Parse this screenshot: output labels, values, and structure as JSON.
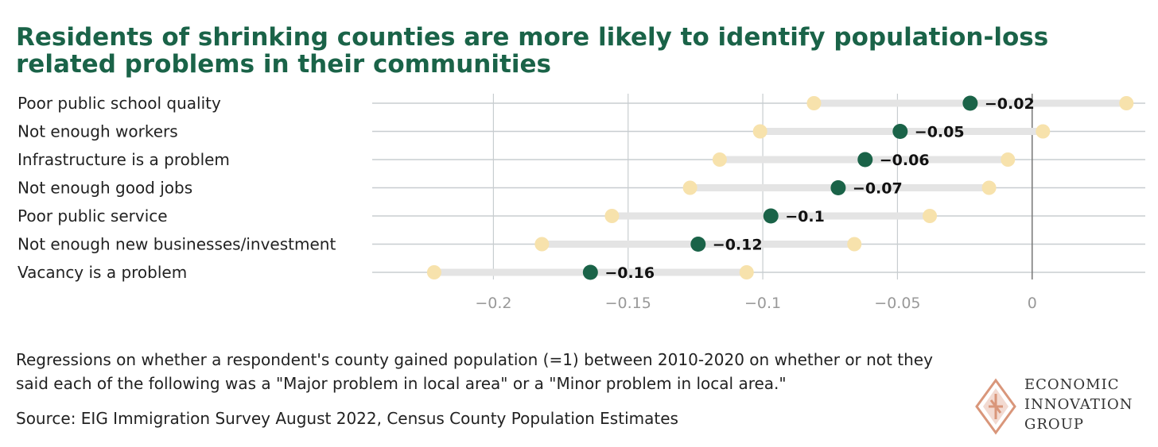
{
  "title": "Residents of shrinking counties are more likely to identify population-loss related problems in their communities",
  "chart_data": {
    "type": "dot-range",
    "title": "Residents of shrinking counties are more likely to identify population-loss related problems in their communities",
    "xlabel": "",
    "ylabel": "",
    "xlim": [
      -0.245,
      0.042
    ],
    "x_ticks": [
      -0.2,
      -0.15,
      -0.1,
      -0.05,
      0
    ],
    "x_tick_labels": [
      "−0.2",
      "−0.15",
      "−0.1",
      "−0.05",
      "0"
    ],
    "grid": true,
    "categories": [
      "Poor public school quality",
      "Not enough workers",
      "Infrastructure is a problem",
      "Not enough good jobs",
      "Poor public service",
      "Not enough new businesses/investment",
      "Vacancy is a problem"
    ],
    "estimates": [
      -0.023,
      -0.049,
      -0.062,
      -0.072,
      -0.097,
      -0.124,
      -0.164
    ],
    "estimate_labels": [
      "−0.02",
      "−0.05",
      "−0.06",
      "−0.07",
      "−0.1",
      "−0.12",
      "−0.16"
    ],
    "ci_low": [
      -0.081,
      -0.101,
      -0.116,
      -0.127,
      -0.156,
      -0.182,
      -0.222
    ],
    "ci_high": [
      0.035,
      0.004,
      -0.009,
      -0.016,
      -0.038,
      -0.066,
      -0.106
    ],
    "colors": {
      "estimate": "#1a6348",
      "interval_end": "#f7e2ac",
      "interval_bar": "#e4e4e4",
      "grid": "#c8cdd0",
      "zero_line": "#777777",
      "tick_label": "#999999",
      "value_label": "#111111"
    }
  },
  "note": "Regressions on whether a respondent's county gained population (=1) between 2010-2020 on whether or not they said each of the following was a \"Major problem in local area\" or a \"Minor problem in local area.\"",
  "source": "Source: EIG Immigration Survey August 2022, Census County Population Estimates",
  "logo": {
    "line1": "ECONOMIC",
    "line2": "INNOVATION",
    "line3": "GROUP",
    "color": "#d9967a"
  }
}
